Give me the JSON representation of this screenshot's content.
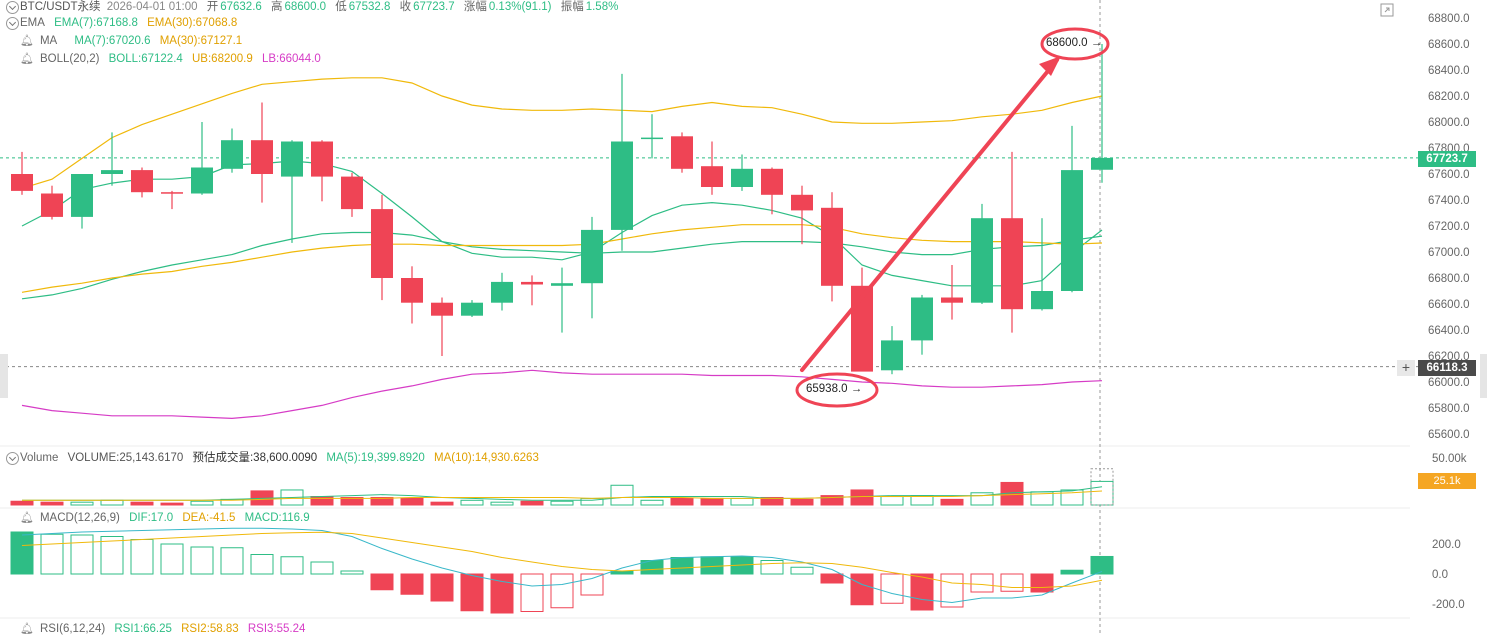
{
  "header": {
    "symbol": "BTC/USDT永续",
    "datetime": "2026-04-01 01:00",
    "open_label": "开",
    "open": "67632.6",
    "high_label": "高",
    "high": "68600.0",
    "low_label": "低",
    "low": "67532.8",
    "close_label": "收",
    "close": "67723.7",
    "change_label": "涨幅",
    "change": "0.13%(91.1)",
    "amp_label": "振幅",
    "amp": "1.58%"
  },
  "indicators": {
    "ema": {
      "name": "EMA",
      "ema7": "EMA(7):67168.8",
      "ema30": "EMA(30):67068.8"
    },
    "ma": {
      "name": "MA",
      "ma7": "MA(7):67020.6",
      "ma30": "MA(30):67127.1"
    },
    "boll": {
      "name": "BOLL(20,2)",
      "boll": "BOLL:67122.4",
      "ub": "UB:68200.9",
      "lb": "LB:66044.0"
    },
    "volume": {
      "name": "Volume",
      "vol": "VOLUME:25,143.6170",
      "est": "预估成交量:38,600.0090",
      "ma5": "MA(5):19,399.8920",
      "ma10": "MA(10):14,930.6263"
    },
    "macd": {
      "name": "MACD(12,26,9)",
      "dif": "DIF:17.0",
      "dea": "DEA:-41.5",
      "macd": "MACD:116.9"
    },
    "rsi": {
      "name": "RSI(6,12,24)",
      "rsi1": "RSI1:66.25",
      "rsi2": "RSI2:58.83",
      "rsi3": "RSI3:55.24"
    }
  },
  "price_tags": {
    "current": "67723.7",
    "crosshair": "66118.3",
    "volume_current": "25.1k"
  },
  "annotations": {
    "high_label": "68600.0",
    "low_label": "65938.0"
  },
  "colors": {
    "up": "#2ebd85",
    "down": "#ef4455",
    "ema7": "#2ebd85",
    "ema30": "#f0b90b",
    "ub": "#f0b90b",
    "lb": "#d63cc6",
    "arrow": "#ef4455"
  },
  "chart_data": [
    {
      "type": "candlestick",
      "y_ticks": [
        "68800.0",
        "68600.0",
        "68400.0",
        "68200.0",
        "68000.0",
        "67800.0",
        "67600.0",
        "67400.0",
        "67200.0",
        "67000.0",
        "66800.0",
        "66600.0",
        "66400.0",
        "66200.0",
        "66000.0",
        "65800.0",
        "65600.0"
      ],
      "ylim": [
        65400,
        68950
      ],
      "candles": [
        {
          "o": 67600,
          "h": 67770,
          "l": 67440,
          "c": 67470
        },
        {
          "o": 67450,
          "h": 67510,
          "l": 67250,
          "c": 67270
        },
        {
          "o": 67270,
          "h": 67600,
          "l": 67180,
          "c": 67600
        },
        {
          "o": 67600,
          "h": 67920,
          "l": 67510,
          "c": 67630
        },
        {
          "o": 67630,
          "h": 67650,
          "l": 67420,
          "c": 67460
        },
        {
          "o": 67460,
          "h": 67470,
          "l": 67330,
          "c": 67450
        },
        {
          "o": 67450,
          "h": 68000,
          "l": 67440,
          "c": 67650
        },
        {
          "o": 67640,
          "h": 67950,
          "l": 67610,
          "c": 67860
        },
        {
          "o": 67860,
          "h": 68150,
          "l": 67380,
          "c": 67600
        },
        {
          "o": 67580,
          "h": 67860,
          "l": 67070,
          "c": 67850
        },
        {
          "o": 67850,
          "h": 67860,
          "l": 67390,
          "c": 67580
        },
        {
          "o": 67580,
          "h": 67610,
          "l": 67270,
          "c": 67330
        },
        {
          "o": 67330,
          "h": 67440,
          "l": 66630,
          "c": 66800
        },
        {
          "o": 66800,
          "h": 66890,
          "l": 66450,
          "c": 66610
        },
        {
          "o": 66610,
          "h": 66650,
          "l": 66200,
          "c": 66510
        },
        {
          "o": 66510,
          "h": 66630,
          "l": 66500,
          "c": 66610
        },
        {
          "o": 66610,
          "h": 66840,
          "l": 66550,
          "c": 66770
        },
        {
          "o": 66770,
          "h": 66820,
          "l": 66590,
          "c": 66750
        },
        {
          "o": 66740,
          "h": 66880,
          "l": 66380,
          "c": 66760
        },
        {
          "o": 66760,
          "h": 67270,
          "l": 66490,
          "c": 67170
        },
        {
          "o": 67170,
          "h": 68370,
          "l": 67010,
          "c": 67850
        },
        {
          "o": 67870,
          "h": 68060,
          "l": 67720,
          "c": 67880
        },
        {
          "o": 67890,
          "h": 67920,
          "l": 67610,
          "c": 67640
        },
        {
          "o": 67660,
          "h": 67850,
          "l": 67440,
          "c": 67500
        },
        {
          "o": 67500,
          "h": 67750,
          "l": 67470,
          "c": 67640
        },
        {
          "o": 67640,
          "h": 67650,
          "l": 67290,
          "c": 67440
        },
        {
          "o": 67440,
          "h": 67510,
          "l": 67060,
          "c": 67320
        },
        {
          "o": 67340,
          "h": 67460,
          "l": 66620,
          "c": 66740
        },
        {
          "o": 66740,
          "h": 66880,
          "l": 66100,
          "c": 66080
        },
        {
          "o": 66090,
          "h": 66430,
          "l": 66060,
          "c": 66320
        },
        {
          "o": 66320,
          "h": 66670,
          "l": 66210,
          "c": 66650
        },
        {
          "o": 66650,
          "h": 66900,
          "l": 66480,
          "c": 66610
        },
        {
          "o": 66610,
          "h": 67370,
          "l": 66600,
          "c": 67260
        },
        {
          "o": 67260,
          "h": 67770,
          "l": 66380,
          "c": 66560
        },
        {
          "o": 66560,
          "h": 67260,
          "l": 66550,
          "c": 66700
        },
        {
          "o": 66700,
          "h": 67970,
          "l": 66690,
          "c": 67630
        },
        {
          "o": 67632.6,
          "h": 68600.0,
          "l": 67532.8,
          "c": 67723.7
        }
      ],
      "ub": [
        67490,
        67560,
        67720,
        67880,
        67980,
        68060,
        68140,
        68220,
        68290,
        68310,
        68330,
        68340,
        68340,
        68300,
        68200,
        68130,
        68100,
        68090,
        68090,
        68100,
        68090,
        68080,
        68120,
        68150,
        68120,
        68110,
        68060,
        68000,
        67990,
        67990,
        68000,
        68010,
        68040,
        68060,
        68090,
        68150,
        68200
      ],
      "lb": [
        65820,
        65780,
        65760,
        65740,
        65740,
        65740,
        65730,
        65720,
        65740,
        65780,
        65820,
        65880,
        65930,
        65970,
        66020,
        66060,
        66070,
        66090,
        66070,
        66060,
        66060,
        66060,
        66060,
        66050,
        66050,
        66050,
        66040,
        66020,
        66000,
        65990,
        65970,
        65960,
        65960,
        65970,
        65980,
        66000,
        66010
      ],
      "mid": [
        66640,
        66670,
        66720,
        66790,
        66850,
        66900,
        66940,
        66980,
        67050,
        67100,
        67140,
        67150,
        67150,
        67130,
        67080,
        67040,
        67020,
        67010,
        67000,
        66990,
        67000,
        67000,
        67030,
        67060,
        67080,
        67080,
        67080,
        67070,
        67040,
        67000,
        66980,
        66980,
        67020,
        67040,
        67050,
        67090,
        67122
      ],
      "ema7": [
        67200,
        67320,
        67480,
        67530,
        67560,
        67560,
        67580,
        67670,
        67680,
        67700,
        67680,
        67620,
        67450,
        67270,
        67080,
        66990,
        66960,
        66960,
        66940,
        67000,
        67150,
        67280,
        67360,
        67380,
        67360,
        67320,
        67260,
        67120,
        66900,
        66820,
        66780,
        66740,
        66740,
        66740,
        66780,
        66990,
        67169
      ],
      "ema30": [
        66690,
        66730,
        66760,
        66800,
        66830,
        66850,
        66890,
        66920,
        66960,
        67000,
        67030,
        67050,
        67060,
        67060,
        67050,
        67050,
        67050,
        67050,
        67050,
        67060,
        67100,
        67140,
        67170,
        67190,
        67210,
        67210,
        67210,
        67190,
        67140,
        67110,
        67090,
        67080,
        67080,
        67080,
        67070,
        67060,
        67069
      ]
    },
    {
      "type": "bar",
      "name": "Volume",
      "y_ticks": [
        "50.00k"
      ],
      "values": [
        4,
        3,
        3,
        5,
        3,
        2,
        4,
        6,
        15,
        16,
        9,
        8,
        8,
        7,
        3,
        5,
        3,
        4,
        4,
        7,
        21,
        5,
        7,
        7,
        7,
        8,
        6,
        10,
        16,
        9,
        10,
        6,
        13,
        24,
        14,
        16,
        25.1
      ],
      "ma5": [
        5,
        5,
        5,
        5,
        5,
        5,
        5,
        6,
        7,
        8,
        9,
        10,
        11,
        10,
        8,
        7,
        6,
        5,
        5,
        5,
        8,
        9,
        9,
        9,
        9,
        7,
        7,
        8,
        9,
        10,
        10,
        10,
        10,
        13,
        14,
        15,
        19.4
      ],
      "ma10": [
        5,
        5,
        5,
        5,
        5,
        5,
        5,
        5,
        6,
        7,
        7,
        7,
        7,
        8,
        8,
        8,
        8,
        8,
        8,
        7,
        8,
        8,
        8,
        7,
        7,
        7,
        7,
        8,
        9,
        9,
        9,
        9,
        10,
        11,
        12,
        13,
        14.9
      ]
    },
    {
      "type": "bar",
      "name": "MACD",
      "y_ticks": [
        "200.0",
        "0.0",
        "-200.0"
      ],
      "hist": [
        280,
        265,
        260,
        250,
        230,
        200,
        180,
        175,
        130,
        115,
        80,
        20,
        -105,
        -135,
        -180,
        -245,
        -260,
        -250,
        -225,
        -140,
        20,
        90,
        110,
        115,
        115,
        90,
        45,
        -60,
        -205,
        -195,
        -240,
        -220,
        -120,
        -115,
        -120,
        25,
        116.9
      ],
      "dif": [
        260,
        270,
        280,
        285,
        290,
        295,
        300,
        305,
        305,
        300,
        290,
        250,
        170,
        100,
        40,
        -10,
        -50,
        -80,
        -70,
        -30,
        40,
        90,
        110,
        115,
        120,
        110,
        80,
        30,
        -70,
        -130,
        -170,
        -190,
        -160,
        -160,
        -140,
        -60,
        17
      ],
      "dea": [
        190,
        200,
        210,
        220,
        230,
        240,
        250,
        260,
        270,
        275,
        278,
        270,
        240,
        210,
        180,
        150,
        110,
        80,
        50,
        30,
        20,
        30,
        40,
        50,
        60,
        70,
        75,
        70,
        45,
        10,
        -20,
        -60,
        -70,
        -90,
        -90,
        -80,
        -41.5
      ]
    }
  ]
}
